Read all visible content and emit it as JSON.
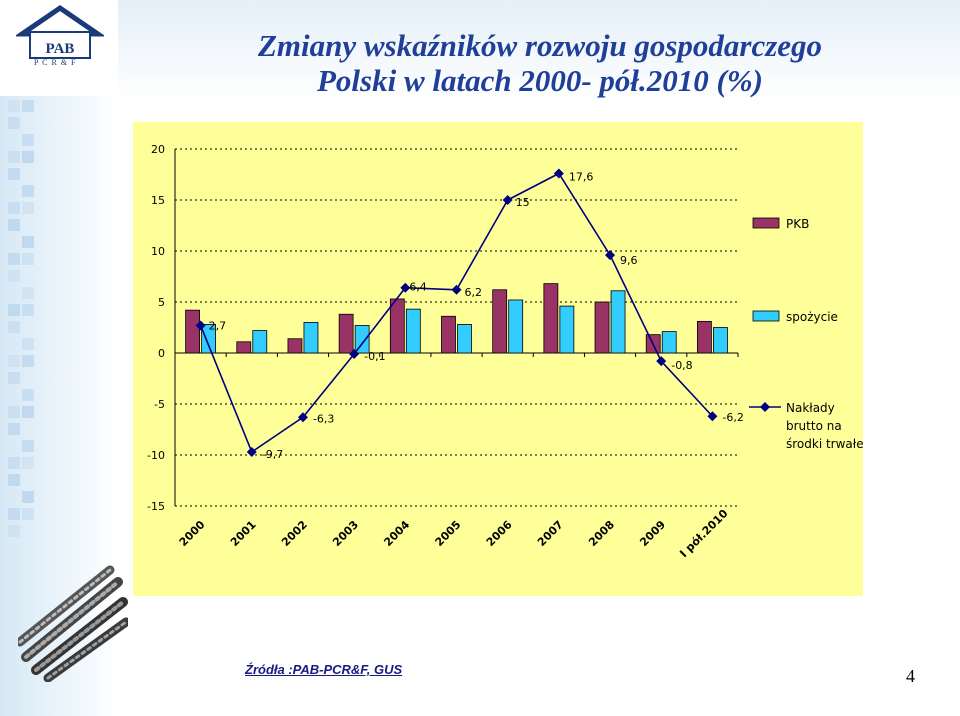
{
  "logo": {
    "text": "PAB",
    "subtitle": "P C R & F"
  },
  "title": {
    "line1": "Zmiany  wskaźników  rozwoju gospodarczego",
    "line2": "Polski w latach 2000-  pół.2010  (%)"
  },
  "chart_data": {
    "type": "bar+line",
    "categories": [
      "2000",
      "2001",
      "2002",
      "2003",
      "2004",
      "2005",
      "2006",
      "2007",
      "2008",
      "2009",
      "I pół.2010"
    ],
    "ylim": [
      -15,
      20
    ],
    "yticks": [
      "20",
      "15",
      "10",
      "5",
      "0",
      "-5",
      "-10",
      "-15"
    ],
    "grid": true,
    "legend_position": "right",
    "series": [
      {
        "name": "PKB",
        "kind": "bar",
        "color": "#993366",
        "values": [
          4.2,
          1.1,
          1.4,
          3.8,
          5.3,
          3.6,
          6.2,
          6.8,
          5.0,
          1.8,
          3.1
        ]
      },
      {
        "name": "spożycie",
        "kind": "bar",
        "color": "#33ccff",
        "values": [
          2.8,
          2.2,
          3.0,
          2.7,
          4.3,
          2.8,
          5.2,
          4.6,
          6.1,
          2.1,
          2.5
        ]
      },
      {
        "name": "Nakłady brutto na środki trwałe",
        "kind": "line",
        "color": "#000080",
        "values": [
          2.7,
          -9.7,
          -6.3,
          -0.1,
          6.4,
          6.2,
          15,
          17.6,
          9.6,
          -0.8,
          -6.2
        ],
        "labels": [
          "2,7",
          "-9,7",
          "-6,3",
          "-0,1",
          "6,4",
          "6,2",
          "15",
          "17,6",
          "9,6",
          "-0,8",
          "-6,2"
        ]
      }
    ],
    "legend": [
      {
        "label": "PKB"
      },
      {
        "label": "spożycie"
      },
      {
        "label": "Nakłady brutto na środki trwałe",
        "lines": [
          "Nakłady",
          "brutto na",
          "środki trwałe"
        ]
      }
    ]
  },
  "source": "Źródła :PAB-PCR&F, GUS",
  "page_number": "4"
}
